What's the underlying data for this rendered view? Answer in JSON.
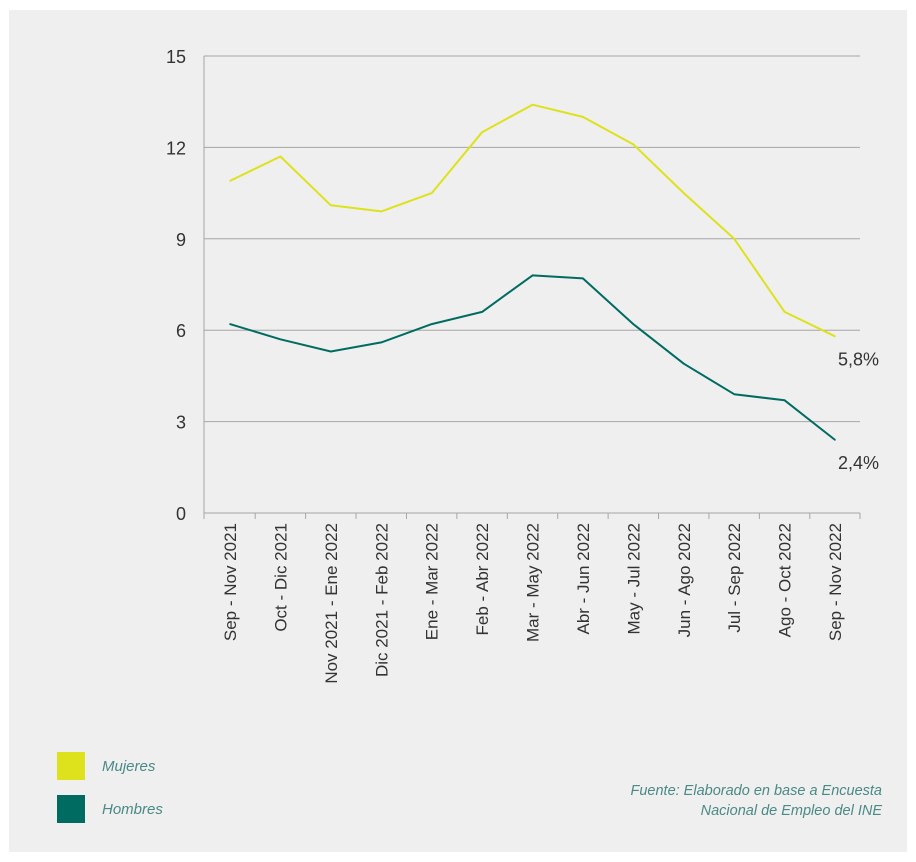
{
  "colors": {
    "background": "#efefef",
    "mujeres": "#dde21c",
    "hombres": "#006c61",
    "grid": "#a6a6a6",
    "axis_text": "#333333",
    "legend_text": "#4a8a86"
  },
  "legend": {
    "mujeres_label": "Mujeres",
    "hombres_label": "Hombres"
  },
  "source": {
    "line1": "Fuente: Elaborado en base a Encuesta",
    "line2": "Nacional de Empleo del INE"
  },
  "chart_data": {
    "type": "line",
    "title": "",
    "xlabel": "",
    "ylabel": "",
    "ylim": [
      0,
      15
    ],
    "yticks": [
      0,
      3,
      6,
      9,
      12,
      15
    ],
    "grid": true,
    "legend_position": "bottom-left",
    "categories": [
      "Sep - Nov 2021",
      "Oct - Dic 2021",
      "Nov 2021 - Ene 2022",
      "Dic 2021 - Feb 2022",
      "Ene - Mar 2022",
      "Feb - Abr 2022",
      "Mar - May 2022",
      "Abr - Jun 2022",
      "May - Jul 2022",
      "Jun - Ago 2022",
      "Jul - Sep 2022",
      "Ago - Oct 2022",
      "Sep - Nov 2022"
    ],
    "series": [
      {
        "name": "Mujeres",
        "color": "#dde21c",
        "values": [
          10.9,
          11.7,
          10.1,
          9.9,
          10.5,
          12.5,
          13.4,
          13.0,
          12.1,
          10.5,
          9.0,
          6.6,
          5.8
        ],
        "end_label": "5,8%"
      },
      {
        "name": "Hombres",
        "color": "#006c61",
        "values": [
          6.2,
          5.7,
          5.3,
          5.6,
          6.2,
          6.6,
          7.8,
          7.7,
          6.2,
          4.9,
          3.9,
          3.7,
          2.4
        ],
        "end_label": "2,4%"
      }
    ]
  }
}
